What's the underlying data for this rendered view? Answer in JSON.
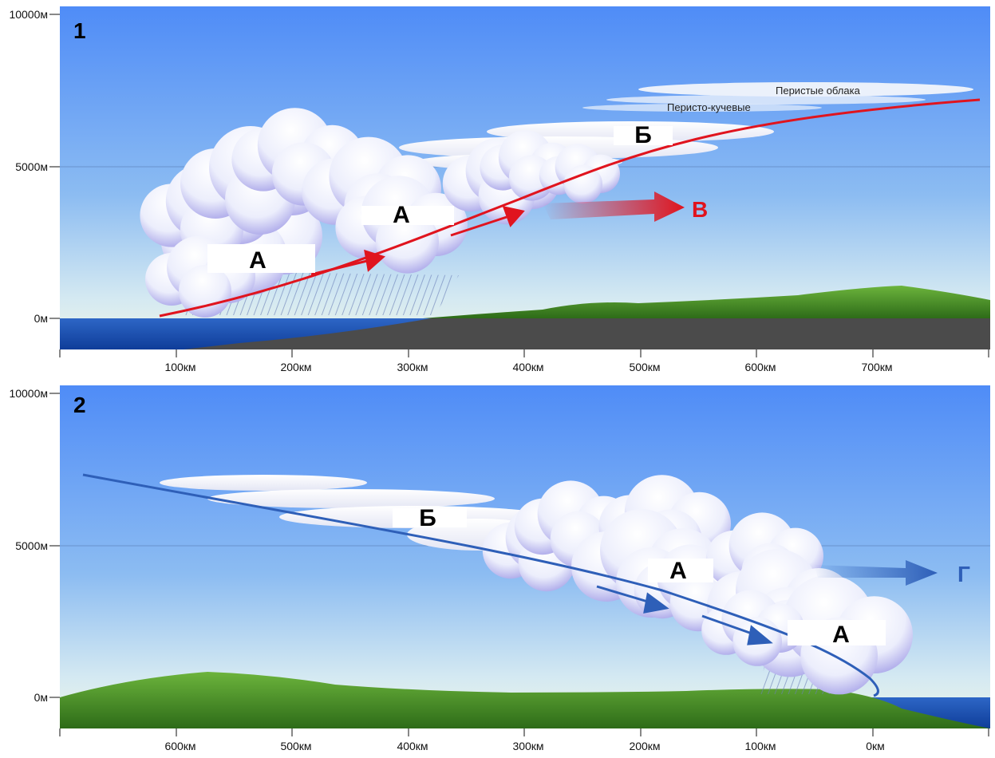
{
  "panel1": {
    "number": "1",
    "y_ticks": [
      "10000м",
      "5000м",
      "0м"
    ],
    "x_ticks": [
      "100км",
      "200км",
      "300км",
      "400км",
      "500км",
      "600км",
      "700км"
    ],
    "labels": [
      "А",
      "А",
      "Б"
    ],
    "cirrus_label": "Перистые облака",
    "cirrocumulus_label": "Перисто-кучевые",
    "arrow_label": "В",
    "arrow_color": "#e0141e"
  },
  "panel2": {
    "number": "2",
    "y_ticks": [
      "10000м",
      "5000м",
      "0м"
    ],
    "x_ticks": [
      "600км",
      "500км",
      "400км",
      "300км",
      "200км",
      "100км",
      "0км"
    ],
    "labels": [
      "Б",
      "А",
      "А"
    ],
    "arrow_label": "Г",
    "arrow_color": "#2e5fb8"
  }
}
